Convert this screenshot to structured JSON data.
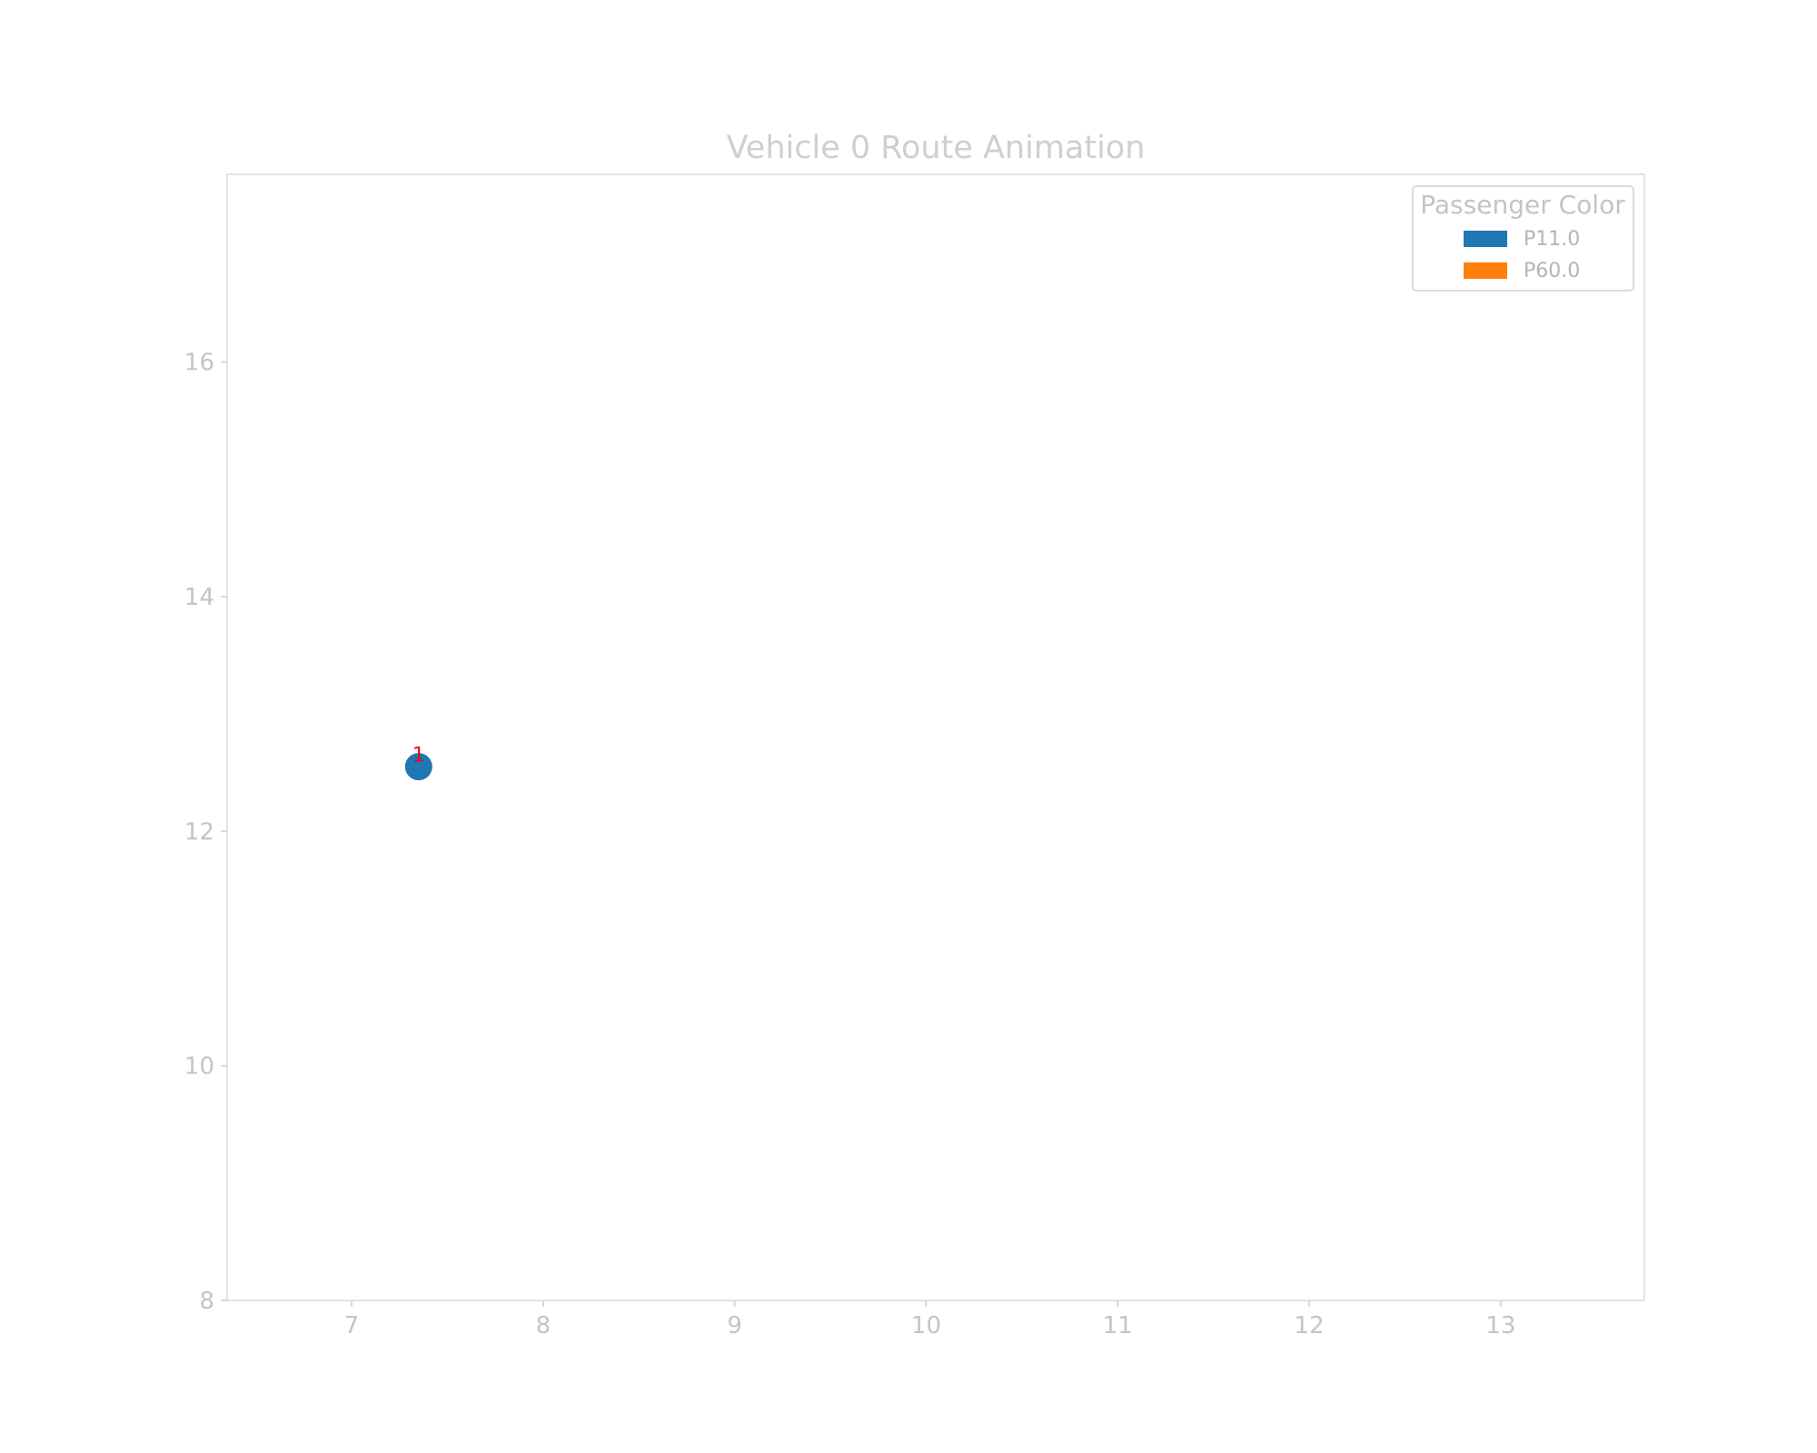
{
  "chart_data": {
    "type": "scatter",
    "title": "Vehicle 0 Route Animation",
    "xlabel": "",
    "ylabel": "",
    "xlim": [
      6.35,
      13.75
    ],
    "ylim": [
      8,
      17.6
    ],
    "x_ticks": [
      "7",
      "8",
      "9",
      "10",
      "11",
      "12",
      "13"
    ],
    "y_ticks": [
      "8",
      "10",
      "12",
      "14",
      "16"
    ],
    "grid": false,
    "legend": {
      "title": "Passenger Color",
      "position": "top-right",
      "entries": [
        {
          "label": "P11.0",
          "color": "#1f77b4"
        },
        {
          "label": "P60.0",
          "color": "#ff7f0e"
        }
      ]
    },
    "series": [
      {
        "name": "P11.0",
        "color": "#1f77b4",
        "points": [
          {
            "x": 7.35,
            "y": 12.55
          }
        ]
      }
    ],
    "annotations": [
      {
        "text": "1",
        "x": 7.35,
        "y": 12.55,
        "color": "#ff0000"
      }
    ]
  }
}
